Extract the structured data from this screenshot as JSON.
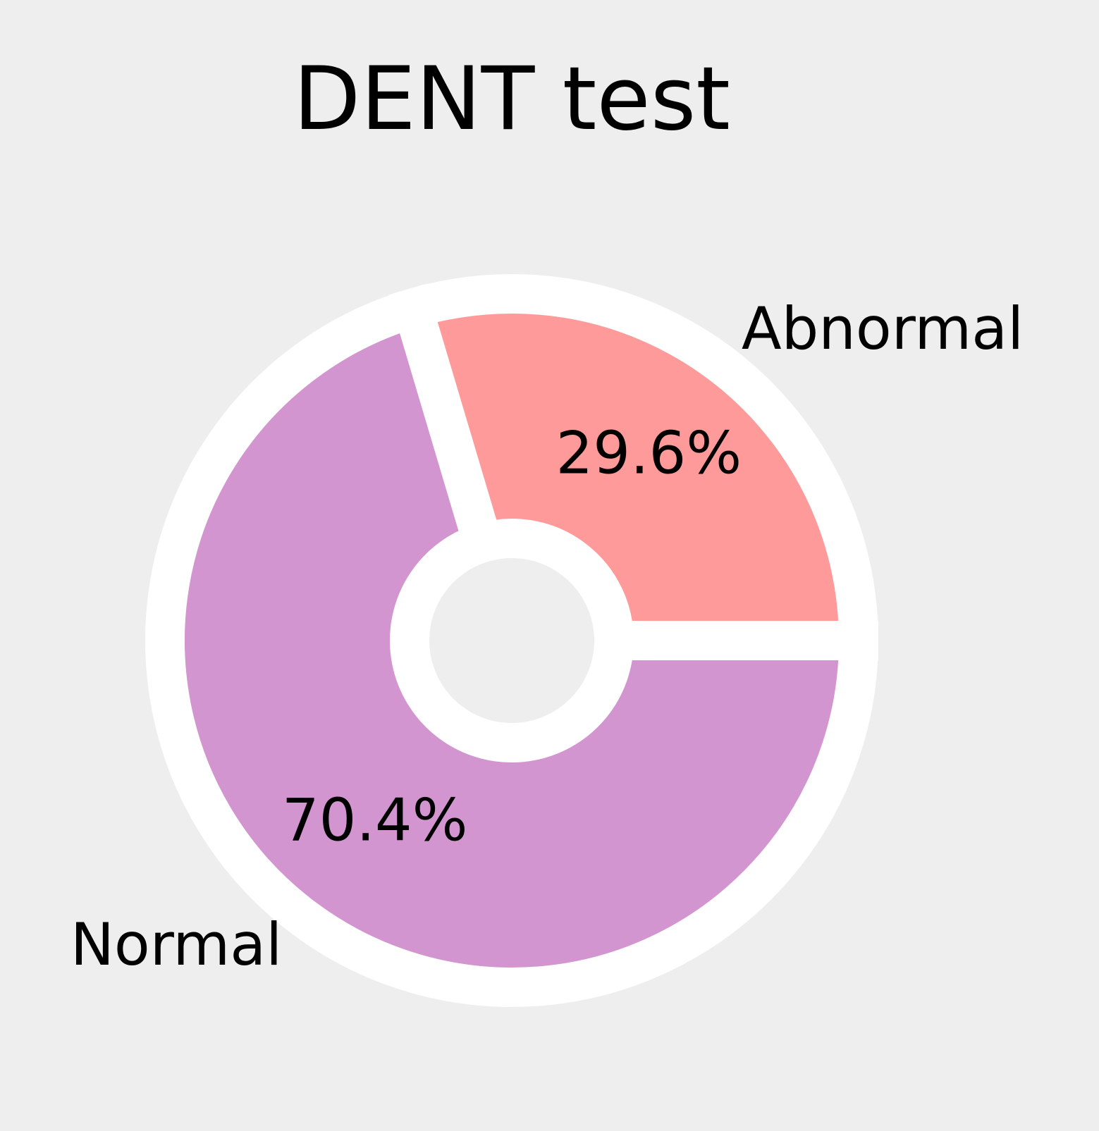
{
  "chart_data": {
    "type": "pie",
    "title": "DENT test",
    "categories": [
      "Normal",
      "Abnormal"
    ],
    "values": [
      70.4,
      29.6
    ],
    "value_labels": [
      "70.4%",
      "29.6%"
    ],
    "colors": [
      "#d395cf",
      "#ff9a9a"
    ],
    "donut": true,
    "background": "#eeeeee",
    "edge_color": "#ffffff",
    "start_direction": "3 o'clock, clockwise"
  }
}
